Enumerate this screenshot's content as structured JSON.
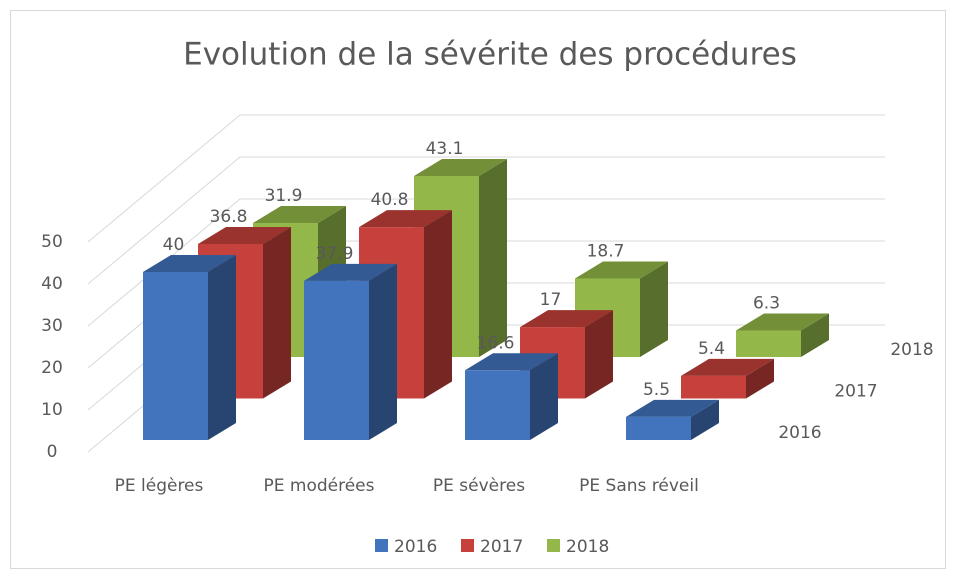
{
  "chart_data": {
    "type": "bar3d",
    "title": "Evolution de la sévérite des procédures",
    "categories": [
      "PE légères",
      "PE modérées",
      "PE sévères",
      "PE Sans réveil"
    ],
    "series": [
      {
        "name": "2016",
        "color": "#4273bd",
        "values": [
          40,
          37.9,
          16.6,
          5.5
        ]
      },
      {
        "name": "2017",
        "color": "#c6413b",
        "values": [
          36.8,
          40.8,
          17,
          5.4
        ]
      },
      {
        "name": "2018",
        "color": "#93b849",
        "values": [
          31.9,
          43.1,
          18.7,
          6.3
        ]
      }
    ],
    "ylim": [
      0,
      50
    ],
    "yticks": [
      0,
      10,
      20,
      30,
      40,
      50
    ],
    "grid": true,
    "legend": "bottom"
  }
}
